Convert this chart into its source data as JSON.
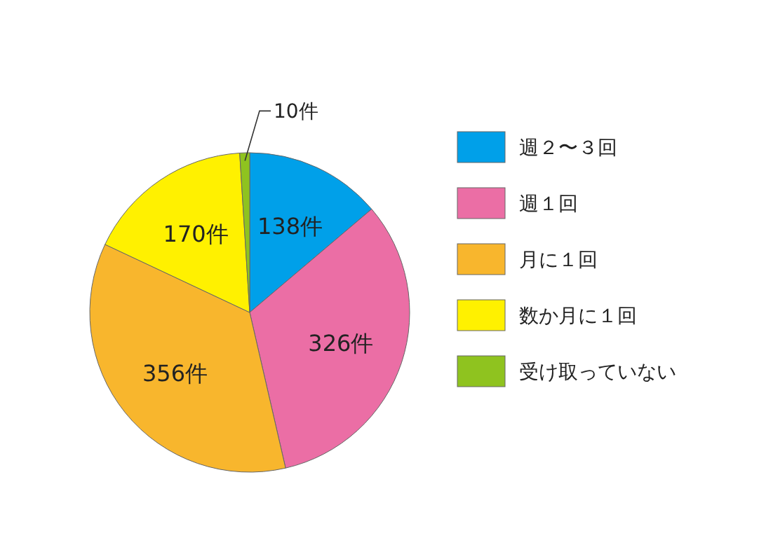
{
  "chart_data": {
    "type": "pie",
    "categories": [
      "週２〜３回",
      "週１回",
      "月に１回",
      "数か月に１回",
      "受け取っていない"
    ],
    "values": [
      138,
      326,
      356,
      170,
      10
    ],
    "colors": [
      "#00a0e9",
      "#eb6ea5",
      "#f8b62d",
      "#fff100",
      "#8fc31f"
    ],
    "value_labels": [
      "138件",
      "326件",
      "356件",
      "170件",
      "10件"
    ],
    "legend": "right"
  }
}
